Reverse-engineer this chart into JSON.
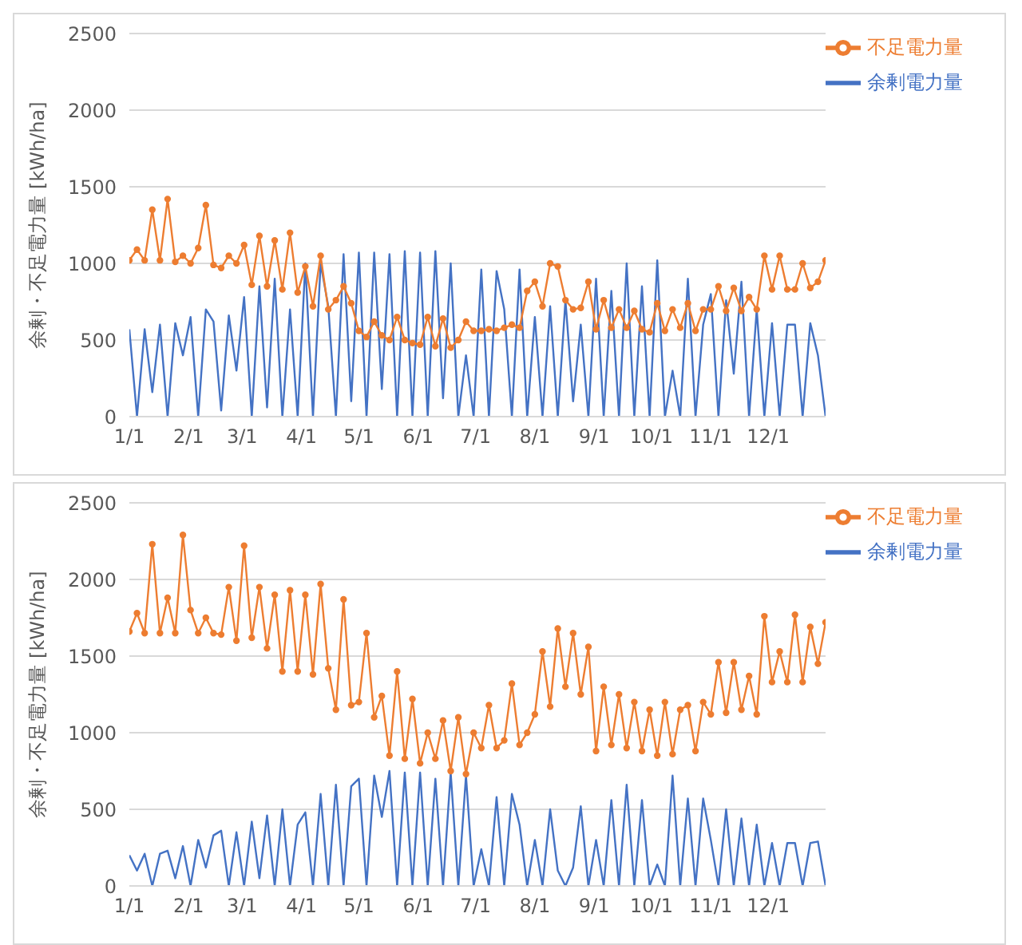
{
  "chart_data": [
    {
      "type": "line",
      "ylabel": "余剰・不足電力量 [kWh/ha]",
      "legend": "top right",
      "grid": "y",
      "x": [
        "--01-01",
        "--01-05",
        "--01-09",
        "--01-13",
        "--01-17",
        "--01-21",
        "--01-25",
        "--01-29",
        "--02-02",
        "--02-06",
        "--02-10",
        "--02-14",
        "--02-18",
        "--02-22",
        "--02-26",
        "--03-02",
        "--03-06",
        "--03-10",
        "--03-14",
        "--03-18",
        "--03-22",
        "--03-26",
        "--03-30",
        "--04-03",
        "--04-07",
        "--04-11",
        "--04-15",
        "--04-19",
        "--04-23",
        "--04-27",
        "--05-01",
        "--05-05",
        "--05-09",
        "--05-13",
        "--05-17",
        "--05-21",
        "--05-25",
        "--05-29",
        "--06-02",
        "--06-06",
        "--06-10",
        "--06-14",
        "--06-18",
        "--06-22",
        "--06-26",
        "--06-30",
        "--07-04",
        "--07-08",
        "--07-12",
        "--07-16",
        "--07-20",
        "--07-24",
        "--07-28",
        "--08-01",
        "--08-05",
        "--08-09",
        "--08-13",
        "--08-17",
        "--08-21",
        "--08-25",
        "--08-29",
        "--09-02",
        "--09-06",
        "--09-10",
        "--09-14",
        "--09-18",
        "--09-22",
        "--09-26",
        "--09-30",
        "--10-04",
        "--10-08",
        "--10-12",
        "--10-16",
        "--10-20",
        "--10-24",
        "--10-28",
        "--11-01",
        "--11-05",
        "--11-09",
        "--11-13",
        "--11-17",
        "--11-21",
        "--11-25",
        "--11-29",
        "--12-03",
        "--12-07",
        "--12-11",
        "--12-15",
        "--12-19",
        "--12-23",
        "--12-27",
        "--12-31"
      ],
      "xlim": [
        "--01-01",
        "--12-31"
      ],
      "xticks": [
        {
          "value": "--01-01",
          "label": "1/1"
        },
        {
          "value": "--02-01",
          "label": "2/1"
        },
        {
          "value": "--03-01",
          "label": "3/1"
        },
        {
          "value": "--04-01",
          "label": "4/1"
        },
        {
          "value": "--05-01",
          "label": "5/1"
        },
        {
          "value": "--06-01",
          "label": "6/1"
        },
        {
          "value": "--07-01",
          "label": "7/1"
        },
        {
          "value": "--08-01",
          "label": "8/1"
        },
        {
          "value": "--09-01",
          "label": "9/1"
        },
        {
          "value": "--10-01",
          "label": "10/1"
        },
        {
          "value": "--11-01",
          "label": "11/1"
        },
        {
          "value": "--12-01",
          "label": "12/1"
        }
      ],
      "ylim": [
        0,
        2500
      ],
      "yticks": [
        0,
        500,
        1000,
        1500,
        2000,
        2500
      ],
      "series": [
        {
          "name": "余剰電力量",
          "color": "#4472c4",
          "marker": "none",
          "values": [
            570,
            0,
            570,
            160,
            600,
            0,
            610,
            400,
            650,
            0,
            700,
            620,
            40,
            660,
            300,
            780,
            0,
            850,
            60,
            900,
            0,
            700,
            0,
            1000,
            0,
            1000,
            720,
            0,
            1060,
            100,
            1070,
            0,
            1070,
            180,
            1060,
            0,
            1080,
            0,
            1070,
            0,
            1080,
            120,
            1000,
            0,
            400,
            0,
            960,
            0,
            950,
            700,
            0,
            960,
            0,
            650,
            0,
            720,
            0,
            760,
            100,
            600,
            0,
            900,
            0,
            820,
            0,
            1000,
            0,
            850,
            0,
            1020,
            0,
            300,
            0,
            900,
            0,
            600,
            800,
            0,
            760,
            280,
            880,
            0,
            700,
            0,
            610,
            0,
            600,
            600,
            0,
            610,
            400,
            0
          ]
        },
        {
          "name": "不足電力量",
          "color": "#ed7d31",
          "marker": "circle",
          "values": [
            1020,
            1090,
            1020,
            1350,
            1020,
            1420,
            1010,
            1050,
            1000,
            1100,
            1380,
            990,
            970,
            1050,
            1000,
            1120,
            860,
            1180,
            850,
            1150,
            830,
            1200,
            810,
            980,
            720,
            1050,
            700,
            760,
            850,
            740,
            560,
            520,
            620,
            530,
            500,
            650,
            500,
            480,
            470,
            650,
            460,
            640,
            450,
            500,
            620,
            560,
            560,
            570,
            560,
            580,
            600,
            580,
            820,
            880,
            720,
            1000,
            980,
            760,
            700,
            710,
            880,
            570,
            760,
            580,
            700,
            580,
            690,
            570,
            550,
            740,
            560,
            700,
            580,
            740,
            560,
            700,
            700,
            850,
            690,
            840,
            690,
            780,
            700,
            1050,
            830,
            1050,
            830,
            830,
            1000,
            840,
            880,
            1020
          ]
        }
      ]
    },
    {
      "type": "line",
      "ylabel": "余剰・不足電力量 [kWh/ha]",
      "legend": "top right",
      "grid": "y",
      "x": [
        "--01-01",
        "--01-05",
        "--01-09",
        "--01-13",
        "--01-17",
        "--01-21",
        "--01-25",
        "--01-29",
        "--02-02",
        "--02-06",
        "--02-10",
        "--02-14",
        "--02-18",
        "--02-22",
        "--02-26",
        "--03-02",
        "--03-06",
        "--03-10",
        "--03-14",
        "--03-18",
        "--03-22",
        "--03-26",
        "--03-30",
        "--04-03",
        "--04-07",
        "--04-11",
        "--04-15",
        "--04-19",
        "--04-23",
        "--04-27",
        "--05-01",
        "--05-05",
        "--05-09",
        "--05-13",
        "--05-17",
        "--05-21",
        "--05-25",
        "--05-29",
        "--06-02",
        "--06-06",
        "--06-10",
        "--06-14",
        "--06-18",
        "--06-22",
        "--06-26",
        "--06-30",
        "--07-04",
        "--07-08",
        "--07-12",
        "--07-16",
        "--07-20",
        "--07-24",
        "--07-28",
        "--08-01",
        "--08-05",
        "--08-09",
        "--08-13",
        "--08-17",
        "--08-21",
        "--08-25",
        "--08-29",
        "--09-02",
        "--09-06",
        "--09-10",
        "--09-14",
        "--09-18",
        "--09-22",
        "--09-26",
        "--09-30",
        "--10-04",
        "--10-08",
        "--10-12",
        "--10-16",
        "--10-20",
        "--10-24",
        "--10-28",
        "--11-01",
        "--11-05",
        "--11-09",
        "--11-13",
        "--11-17",
        "--11-21",
        "--11-25",
        "--11-29",
        "--12-03",
        "--12-07",
        "--12-11",
        "--12-15",
        "--12-19",
        "--12-23",
        "--12-27",
        "--12-31"
      ],
      "xlim": [
        "--01-01",
        "--12-31"
      ],
      "xticks": [
        {
          "value": "--01-01",
          "label": "1/1"
        },
        {
          "value": "--02-01",
          "label": "2/1"
        },
        {
          "value": "--03-01",
          "label": "3/1"
        },
        {
          "value": "--04-01",
          "label": "4/1"
        },
        {
          "value": "--05-01",
          "label": "5/1"
        },
        {
          "value": "--06-01",
          "label": "6/1"
        },
        {
          "value": "--07-01",
          "label": "7/1"
        },
        {
          "value": "--08-01",
          "label": "8/1"
        },
        {
          "value": "--09-01",
          "label": "9/1"
        },
        {
          "value": "--10-01",
          "label": "10/1"
        },
        {
          "value": "--11-01",
          "label": "11/1"
        },
        {
          "value": "--12-01",
          "label": "12/1"
        }
      ],
      "ylim": [
        0,
        2500
      ],
      "yticks": [
        0,
        500,
        1000,
        1500,
        2000,
        2500
      ],
      "series": [
        {
          "name": "余剰電力量",
          "color": "#4472c4",
          "marker": "none",
          "values": [
            200,
            100,
            210,
            0,
            210,
            230,
            50,
            260,
            0,
            300,
            120,
            330,
            360,
            0,
            350,
            0,
            420,
            50,
            460,
            0,
            500,
            0,
            400,
            480,
            0,
            600,
            0,
            660,
            0,
            650,
            700,
            0,
            720,
            450,
            750,
            0,
            740,
            0,
            740,
            0,
            700,
            0,
            740,
            0,
            720,
            0,
            240,
            0,
            580,
            0,
            600,
            400,
            0,
            300,
            0,
            500,
            100,
            0,
            120,
            520,
            0,
            300,
            0,
            560,
            0,
            660,
            0,
            560,
            0,
            140,
            0,
            720,
            0,
            570,
            0,
            570,
            300,
            0,
            500,
            0,
            440,
            0,
            400,
            0,
            280,
            0,
            280,
            280,
            0,
            280,
            290,
            0
          ]
        },
        {
          "name": "不足電力量",
          "color": "#ed7d31",
          "marker": "circle",
          "values": [
            1660,
            1780,
            1650,
            2230,
            1650,
            1880,
            1650,
            2290,
            1800,
            1650,
            1750,
            1650,
            1640,
            1950,
            1600,
            2220,
            1620,
            1950,
            1550,
            1900,
            1400,
            1930,
            1400,
            1900,
            1380,
            1970,
            1420,
            1150,
            1870,
            1180,
            1200,
            1650,
            1100,
            1240,
            850,
            1400,
            830,
            1220,
            800,
            1000,
            830,
            1080,
            750,
            1100,
            730,
            1000,
            900,
            1180,
            900,
            950,
            1320,
            920,
            1000,
            1120,
            1530,
            1170,
            1680,
            1300,
            1650,
            1250,
            1560,
            880,
            1300,
            920,
            1250,
            900,
            1200,
            880,
            1150,
            850,
            1200,
            860,
            1150,
            1180,
            880,
            1200,
            1120,
            1460,
            1130,
            1460,
            1150,
            1370,
            1120,
            1760,
            1330,
            1530,
            1330,
            1770,
            1330,
            1690,
            1450,
            1720
          ]
        }
      ]
    }
  ]
}
